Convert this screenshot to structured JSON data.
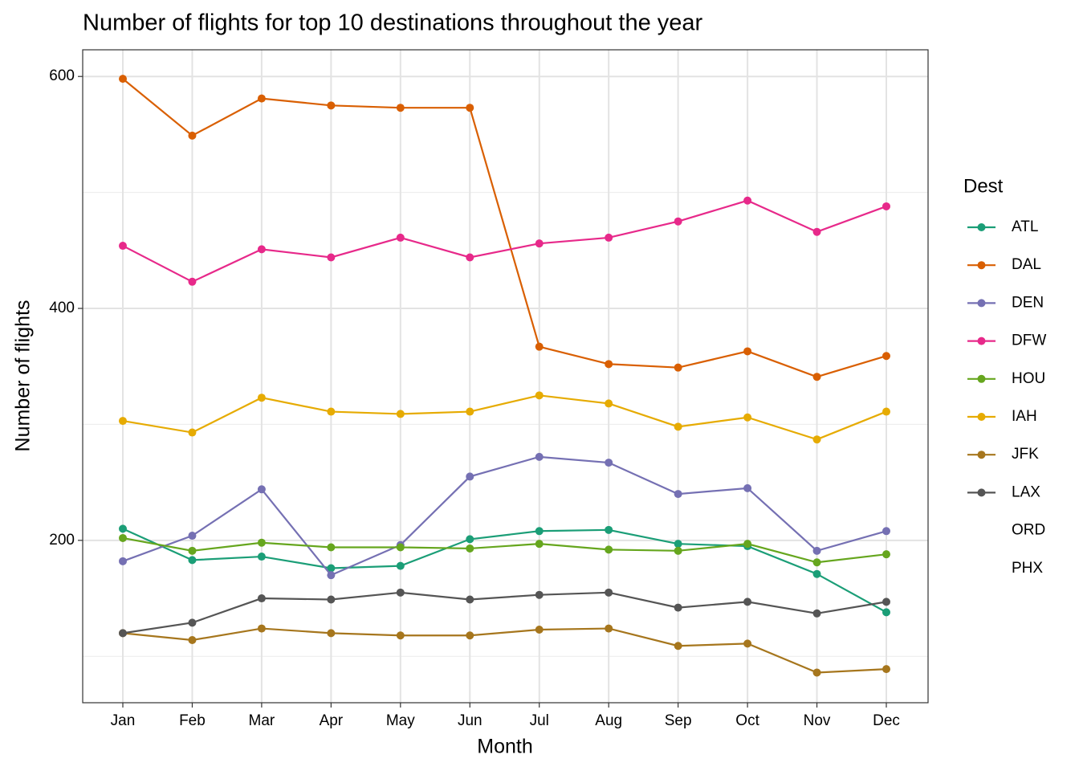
{
  "chart_data": {
    "type": "line",
    "title": "Number of flights for top 10 destinations throughout the year",
    "x_label": "Month",
    "y_label": "Number of flights",
    "legend_title": "Dest",
    "categories": [
      "Jan",
      "Feb",
      "Mar",
      "Apr",
      "May",
      "Jun",
      "Jul",
      "Aug",
      "Sep",
      "Oct",
      "Nov",
      "Dec"
    ],
    "ylim": [
      60,
      623
    ],
    "yticks": [
      200,
      400,
      600
    ],
    "y_minor_ticks": [
      100,
      300,
      500
    ],
    "grid": true,
    "legend": "right",
    "series": [
      {
        "name": "ATL",
        "color": "#1b9e77",
        "values": [
          210,
          183,
          186,
          176,
          178,
          201,
          208,
          209,
          197,
          195,
          171,
          138
        ]
      },
      {
        "name": "DAL",
        "color": "#d95f02",
        "values": [
          598,
          549,
          581,
          575,
          573,
          573,
          367,
          352,
          349,
          363,
          341,
          359
        ]
      },
      {
        "name": "DEN",
        "color": "#7570b3",
        "values": [
          182,
          204,
          244,
          170,
          196,
          255,
          272,
          267,
          240,
          245,
          191,
          208
        ]
      },
      {
        "name": "DFW",
        "color": "#e7298a",
        "values": [
          454,
          423,
          451,
          444,
          461,
          444,
          456,
          461,
          475,
          493,
          466,
          488
        ]
      },
      {
        "name": "HOU",
        "color": "#66a61e",
        "values": [
          202,
          191,
          198,
          194,
          194,
          193,
          197,
          192,
          191,
          197,
          181,
          188
        ]
      },
      {
        "name": "IAH",
        "color": "#e6ab02",
        "values": [
          303,
          293,
          323,
          311,
          309,
          311,
          325,
          318,
          298,
          306,
          287,
          311
        ]
      },
      {
        "name": "JFK",
        "color": "#a6761d",
        "values": [
          120,
          114,
          124,
          120,
          118,
          118,
          123,
          124,
          109,
          111,
          86,
          89
        ]
      },
      {
        "name": "LAX",
        "color": "#555555",
        "values": [
          120,
          129,
          150,
          149,
          155,
          149,
          153,
          155,
          142,
          147,
          137,
          147
        ]
      },
      {
        "name": "ORD",
        "values": [
          null,
          null,
          null,
          null,
          null,
          null,
          null,
          null,
          null,
          null,
          null,
          null
        ]
      },
      {
        "name": "PHX",
        "values": [
          null,
          null,
          null,
          null,
          null,
          null,
          null,
          null,
          null,
          null,
          null,
          null
        ]
      }
    ]
  }
}
